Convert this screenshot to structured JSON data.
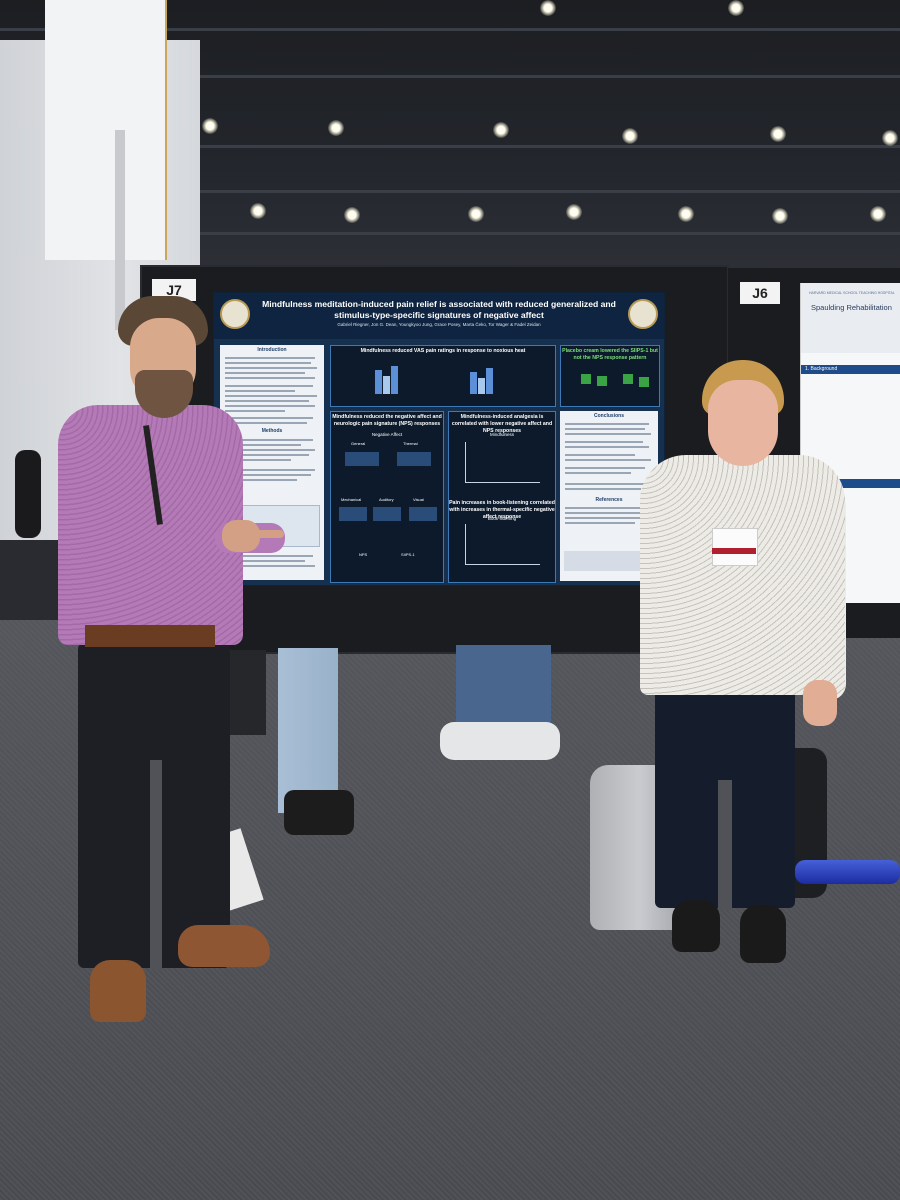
{
  "scene": {
    "description_free": true
  },
  "poster_main": {
    "board_label": "J7",
    "title": "Mindfulness meditation-induced pain relief is associated with reduced generalized and stimulus-type-specific signatures of negative affect",
    "authors": "Gabriel Riegner, Jon G. Dean, Youngkyoo Jung, Grace Posey, Marta Čeko, Tor Wager & Fadel Zeidan",
    "panel_headings": [
      "Mindfulness reduced VAS pain ratings in response to noxious heat",
      "Placebo cream lowered the SIIPS-1 but not the NPS response pattern",
      "Mindfulness reduced the negative affect and neurologic pain signature (NPS) responses",
      "Mindfulness-induced analgesia is correlated with lower negative affect and NPS responses",
      "Pain increases in book-listening correlated with increases in thermal-specific negative affect response"
    ],
    "subpanel_labels": [
      "Negative Affect",
      "General",
      "Thermal",
      "Mechanical",
      "Auditory",
      "Visual",
      "NPS",
      "SIIPS-1",
      "Mindfulness",
      "Book-listening"
    ],
    "section_labels": [
      "Introduction",
      "Methods",
      "Conclusions",
      "References"
    ]
  },
  "poster_right": {
    "board_label": "J6",
    "institution": "HARVARD MEDICAL SCHOOL TEACHING HOSPITAL",
    "title": "Spaulding Rehabilitation",
    "section_1": "1. Background",
    "section_2": "2. Methods"
  },
  "badge_colors": {
    "poster_bg": "#16314f",
    "panel_border": "#3f79b5",
    "shirt_left": "#b47ab8",
    "shirt_right": "#ecebe6"
  }
}
